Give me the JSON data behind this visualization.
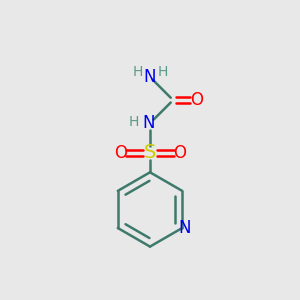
{
  "background_color": "#e8e8e8",
  "atom_colors": {
    "C": "#3d7a6b",
    "H": "#5a9a88",
    "N": "#0000ee",
    "O": "#ff0000",
    "S": "#cccc00"
  },
  "bond_color": "#3d7a6b",
  "figsize": [
    3.0,
    3.0
  ],
  "dpi": 100,
  "xlim": [
    0,
    10
  ],
  "ylim": [
    0,
    10
  ]
}
